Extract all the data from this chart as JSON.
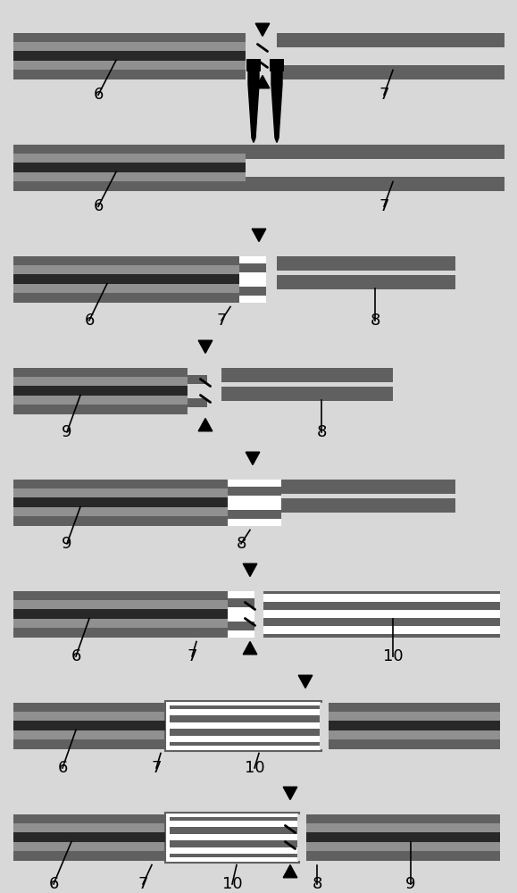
{
  "bg_color": "#d8d8d8",
  "fiber_outer": "#606060",
  "fiber_mid": "#909090",
  "fiber_core": "#282828",
  "black": "#000000",
  "white": "#ffffff",
  "fig_w": 5.79,
  "fig_h": 10.0,
  "n_panels": 8
}
